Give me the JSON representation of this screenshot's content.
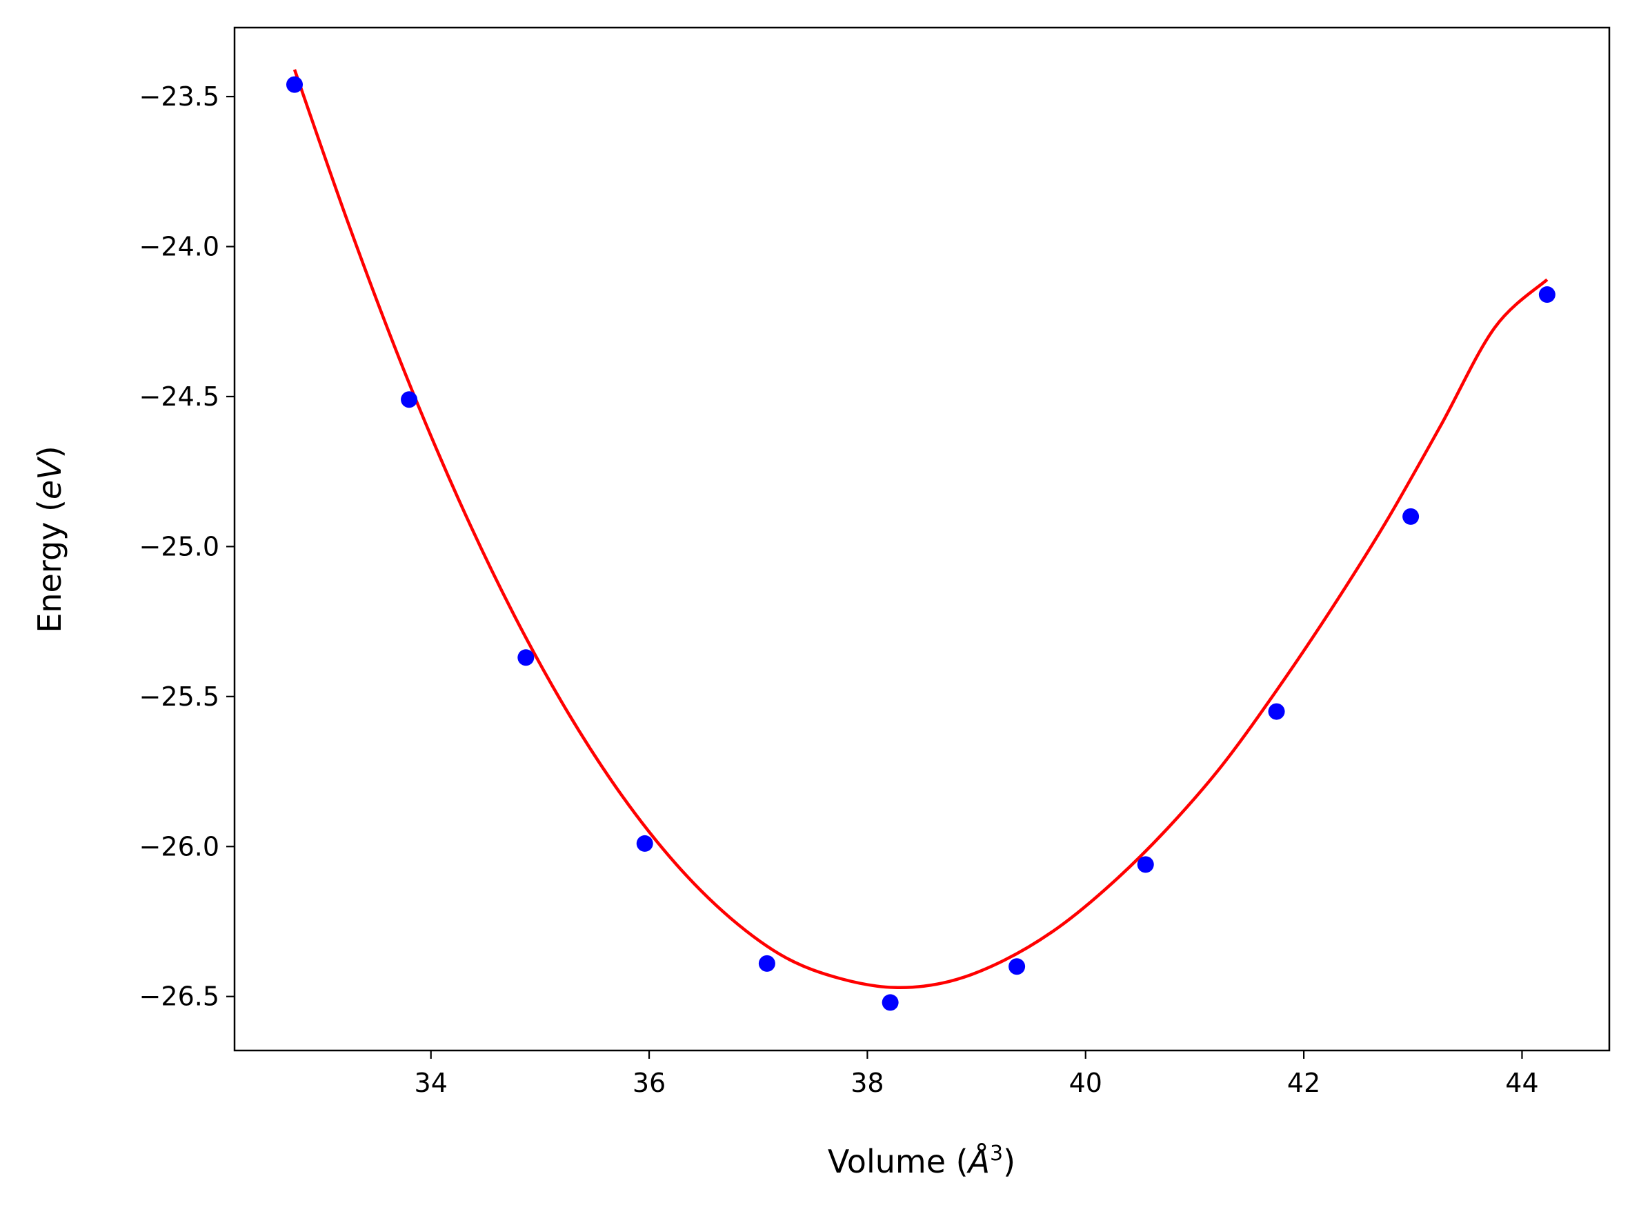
{
  "chart_data": {
    "type": "scatter",
    "title": "",
    "xlabel": "Volume (Å³)",
    "xlabel_parts": {
      "prefix": "Volume (",
      "symbol": "Å",
      "sup": "3",
      "suffix": ")"
    },
    "ylabel": "Energy (eV)",
    "ylabel_parts": {
      "prefix": "Energy (",
      "symbol": "eV",
      "suffix": ")"
    },
    "xlim": [
      32.2,
      44.8
    ],
    "ylim": [
      -26.68,
      -23.27
    ],
    "xticks": [
      34,
      36,
      38,
      40,
      42,
      44
    ],
    "xtick_labels": [
      "34",
      "36",
      "38",
      "40",
      "42",
      "44"
    ],
    "yticks": [
      -23.5,
      -24.0,
      -24.5,
      -25.0,
      -25.5,
      -26.0,
      -26.5
    ],
    "ytick_labels": [
      "−23.5",
      "−24.0",
      "−24.5",
      "−25.0",
      "−25.5",
      "−26.0",
      "−26.5"
    ],
    "grid": false,
    "legend": "none",
    "series": [
      {
        "kind": "points",
        "color": "#0000ff",
        "x": [
          32.75,
          33.8,
          34.87,
          35.96,
          37.08,
          38.21,
          39.37,
          40.55,
          41.75,
          42.98,
          44.23
        ],
        "y": [
          -23.46,
          -24.51,
          -25.37,
          -25.99,
          -26.39,
          -26.52,
          -26.4,
          -26.06,
          -25.55,
          -24.9,
          -24.16
        ]
      },
      {
        "kind": "fit-curve",
        "color": "#ff0000",
        "x": [
          32.75,
          33.25,
          33.75,
          34.25,
          34.75,
          35.25,
          35.75,
          36.25,
          36.75,
          37.25,
          37.75,
          38.25,
          38.75,
          39.25,
          39.75,
          40.25,
          40.75,
          41.25,
          41.75,
          42.25,
          42.75,
          43.25,
          43.75,
          44.23
        ],
        "y": [
          -23.41,
          -23.93,
          -24.41,
          -24.84,
          -25.22,
          -25.55,
          -25.83,
          -26.06,
          -26.24,
          -26.37,
          -26.44,
          -26.47,
          -26.45,
          -26.38,
          -26.27,
          -26.12,
          -25.94,
          -25.73,
          -25.48,
          -25.21,
          -24.92,
          -24.6,
          -24.27,
          -24.11
        ]
      }
    ]
  }
}
